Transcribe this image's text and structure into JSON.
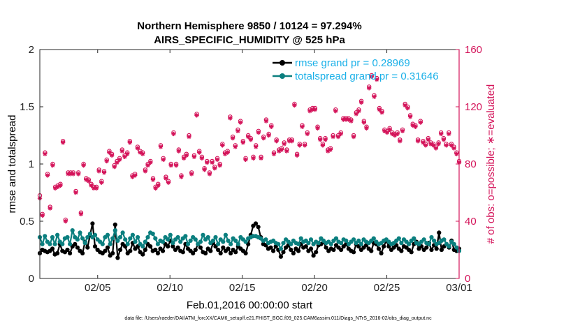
{
  "chart_data": {
    "type": "line",
    "title": "Northern Hemisphere 9850 / 10124 = 97.294%",
    "subtitle": "AIRS_SPECIFIC_HUMIDITY @ 525 hPa",
    "xlabel": "Feb.01,2016 00:00:00 start",
    "ylabel": "rmse and totalspread",
    "ylabel_right": "# of obs: o=possible; ∗=evaluated",
    "footer": "data file: /Users/raeder/DAI/ATM_forcXX/CAM6_setup/f.e21.FHIST_BGC.f09_025.CAM6assim.011/Diags_NTrS_2016-02/obs_diag_output.nc",
    "xlim": [
      1,
      30
    ],
    "ylim": [
      0,
      2
    ],
    "ylim_right": [
      0,
      160
    ],
    "x_ticks": [
      5,
      10,
      15,
      20,
      25,
      30
    ],
    "x_tick_labels": [
      "02/05",
      "02/10",
      "02/15",
      "02/20",
      "02/25",
      "03/01"
    ],
    "y_ticks": [
      0,
      0.5,
      1,
      1.5,
      2
    ],
    "y_tick_labels": [
      "0",
      "0.5",
      "1",
      "1.5",
      "2"
    ],
    "y_ticks_right": [
      0,
      40,
      80,
      120,
      160
    ],
    "y_tick_labels_right": [
      "0",
      "40",
      "80",
      "120",
      "160"
    ],
    "legend_position": "top-right",
    "grid": false,
    "colors": {
      "rmse": "#000000",
      "totalspread": "#0b7f7f",
      "obs": "#d4145a",
      "right_axis": "#d4145a",
      "legend_text": "#1ab0e8"
    },
    "series": [
      {
        "name": "rmse grand pr = 0.28969",
        "values": [
          0.22,
          0.25,
          0.24,
          0.23,
          0.24,
          0.26,
          0.21,
          0.22,
          0.3,
          0.24,
          0.23,
          0.25,
          0.22,
          0.28,
          0.3,
          0.27,
          0.24,
          0.22,
          0.32,
          0.27,
          0.38,
          0.48,
          0.28,
          0.25,
          0.23,
          0.22,
          0.24,
          0.27,
          0.2,
          0.22,
          0.47,
          0.18,
          0.25,
          0.3,
          0.28,
          0.22,
          0.24,
          0.31,
          0.26,
          0.28,
          0.23,
          0.21,
          0.25,
          0.3,
          0.28,
          0.24,
          0.25,
          0.22,
          0.26,
          0.24,
          0.3,
          0.28,
          0.33,
          0.28,
          0.25,
          0.27,
          0.24,
          0.23,
          0.3,
          0.26,
          0.24,
          0.22,
          0.25,
          0.3,
          0.27,
          0.23,
          0.22,
          0.26,
          0.24,
          0.31,
          0.28,
          0.25,
          0.22,
          0.27,
          0.24,
          0.26,
          0.22,
          0.25,
          0.23,
          0.28,
          0.26,
          0.24,
          0.22,
          0.3,
          0.38,
          0.46,
          0.48,
          0.45,
          0.36,
          0.3,
          0.29,
          0.26,
          0.27,
          0.24,
          0.28,
          0.25,
          0.19,
          0.23,
          0.27,
          0.29,
          0.25,
          0.22,
          0.26,
          0.24,
          0.3,
          0.27,
          0.28,
          0.24,
          0.26,
          0.2,
          0.23,
          0.29,
          0.3,
          0.32,
          0.27,
          0.24,
          0.26,
          0.25,
          0.29,
          0.27,
          0.25,
          0.28,
          0.3,
          0.26,
          0.24,
          0.23,
          0.3,
          0.28,
          0.25,
          0.27,
          0.29,
          0.26,
          0.24,
          0.31,
          0.3,
          0.26,
          0.22,
          0.28,
          0.33,
          0.28,
          0.25,
          0.27,
          0.29,
          0.26,
          0.24,
          0.28,
          0.27,
          0.25,
          0.23,
          0.3,
          0.32,
          0.26,
          0.28,
          0.25,
          0.27,
          0.31,
          0.25,
          0.29,
          0.26,
          0.4,
          0.25,
          0.28,
          0.3,
          0.27,
          0.33,
          0.25,
          0.24,
          0.26
        ],
        "color": "#000000"
      },
      {
        "name": "totalspread grand pr = 0.31646",
        "values": [
          0.36,
          0.3,
          0.37,
          0.32,
          0.3,
          0.36,
          0.3,
          0.38,
          0.32,
          0.3,
          0.35,
          0.36,
          0.3,
          0.42,
          0.36,
          0.34,
          0.4,
          0.35,
          0.31,
          0.36,
          0.39,
          0.36,
          0.38,
          0.34,
          0.32,
          0.3,
          0.36,
          0.38,
          0.3,
          0.35,
          0.42,
          0.33,
          0.36,
          0.4,
          0.34,
          0.3,
          0.35,
          0.38,
          0.32,
          0.36,
          0.3,
          0.28,
          0.32,
          0.36,
          0.4,
          0.39,
          0.35,
          0.3,
          0.33,
          0.32,
          0.36,
          0.34,
          0.38,
          0.31,
          0.34,
          0.36,
          0.32,
          0.35,
          0.37,
          0.3,
          0.33,
          0.36,
          0.34,
          0.3,
          0.32,
          0.38,
          0.34,
          0.36,
          0.31,
          0.33,
          0.36,
          0.3,
          0.34,
          0.32,
          0.38,
          0.33,
          0.3,
          0.35,
          0.33,
          0.3,
          0.36,
          0.34,
          0.32,
          0.35,
          0.36,
          0.37,
          0.37,
          0.36,
          0.35,
          0.33,
          0.34,
          0.31,
          0.32,
          0.33,
          0.31,
          0.3,
          0.26,
          0.31,
          0.34,
          0.32,
          0.3,
          0.33,
          0.31,
          0.3,
          0.35,
          0.32,
          0.33,
          0.31,
          0.34,
          0.3,
          0.32,
          0.31,
          0.35,
          0.33,
          0.31,
          0.32,
          0.3,
          0.33,
          0.35,
          0.32,
          0.31,
          0.34,
          0.33,
          0.3,
          0.32,
          0.34,
          0.31,
          0.33,
          0.3,
          0.34,
          0.32,
          0.31,
          0.33,
          0.35,
          0.32,
          0.3,
          0.31,
          0.33,
          0.34,
          0.32,
          0.3,
          0.31,
          0.33,
          0.35,
          0.31,
          0.34,
          0.32,
          0.3,
          0.33,
          0.35,
          0.31,
          0.3,
          0.32,
          0.34,
          0.31,
          0.3,
          0.36,
          0.33,
          0.3,
          0.31,
          0.33,
          0.34,
          0.3,
          0.28,
          0.32,
          0.3,
          0.27,
          0.24
        ],
        "color": "#0b7f7f"
      }
    ],
    "obs_possible": [
      58,
      45,
      88,
      73,
      50,
      80,
      64,
      65,
      66,
      96,
      41,
      74,
      74,
      74,
      61,
      74,
      46,
      80,
      70,
      69,
      66,
      64,
      64,
      76,
      68,
      75,
      83,
      89,
      87,
      79,
      82,
      84,
      90,
      86,
      88,
      96,
      72,
      73,
      92,
      89,
      88,
      76,
      80,
      82,
      70,
      64,
      66,
      93,
      84,
      71,
      68,
      80,
      102,
      80,
      90,
      72,
      85,
      87,
      100,
      74,
      86,
      115,
      89,
      85,
      77,
      82,
      74,
      82,
      78,
      84,
      80,
      94,
      88,
      89,
      113,
      99,
      93,
      104,
      110,
      96,
      84,
      100,
      98,
      85,
      93,
      103,
      85,
      99,
      111,
      101,
      107,
      88,
      97,
      90,
      91,
      95,
      90,
      97,
      97,
      122,
      87,
      94,
      107,
      94,
      102,
      118,
      119,
      119,
      106,
      98,
      94,
      98,
      90,
      91,
      100,
      118,
      100,
      102,
      112,
      112,
      112,
      111,
      100,
      116,
      118,
      124,
      110,
      106,
      134,
      142,
      128,
      140,
      119,
      117,
      104,
      103,
      105,
      102,
      101,
      102,
      97,
      104,
      122,
      120,
      114,
      108,
      107,
      97,
      110,
      96,
      94,
      98,
      95,
      94,
      92,
      95,
      102,
      98,
      94,
      102,
      94,
      92,
      88,
      82
    ],
    "obs_evaluated": [
      56,
      44,
      87,
      72,
      49,
      79,
      63,
      64,
      65,
      95,
      40,
      73,
      73,
      73,
      60,
      73,
      45,
      79,
      69,
      68,
      65,
      63,
      63,
      75,
      67,
      74,
      82,
      88,
      86,
      78,
      81,
      83,
      89,
      85,
      87,
      95,
      71,
      72,
      91,
      88,
      87,
      75,
      79,
      81,
      69,
      63,
      65,
      92,
      83,
      70,
      67,
      79,
      101,
      79,
      89,
      71,
      84,
      86,
      99,
      73,
      85,
      114,
      88,
      84,
      76,
      81,
      73,
      81,
      77,
      83,
      79,
      93,
      87,
      88,
      112,
      98,
      92,
      103,
      109,
      95,
      83,
      99,
      97,
      84,
      92,
      102,
      84,
      98,
      110,
      100,
      106,
      87,
      96,
      89,
      90,
      94,
      89,
      96,
      96,
      121,
      86,
      93,
      106,
      93,
      101,
      117,
      118,
      118,
      105,
      97,
      93,
      97,
      89,
      90,
      99,
      117,
      99,
      101,
      111,
      111,
      111,
      110,
      99,
      115,
      117,
      123,
      109,
      105,
      133,
      141,
      127,
      139,
      118,
      116,
      103,
      102,
      104,
      101,
      100,
      101,
      96,
      103,
      121,
      119,
      113,
      107,
      106,
      96,
      109,
      95,
      93,
      97,
      94,
      93,
      91,
      94,
      101,
      97,
      93,
      101,
      93,
      91,
      87,
      81
    ]
  }
}
